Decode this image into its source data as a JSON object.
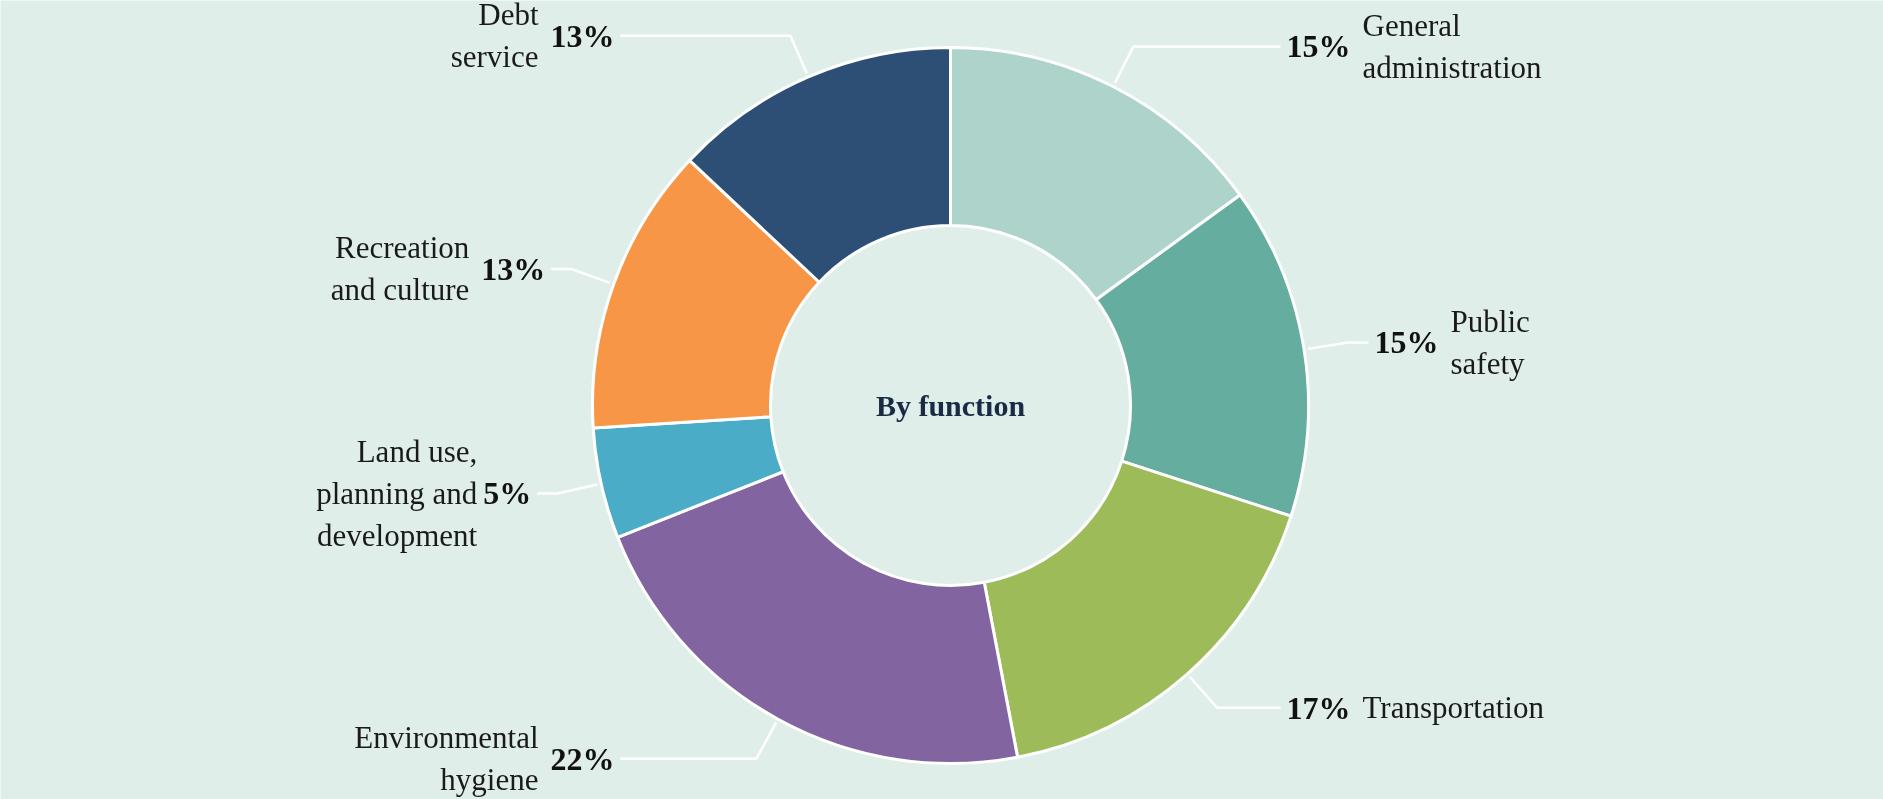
{
  "chart_data": {
    "type": "donut",
    "title": "By function",
    "categories": [
      "General\nadministration",
      "Public\nsafety",
      "Transportation",
      "Environmental\nhygiene",
      "Land use,\nplanning and\ndevelopment",
      "Recreation\nand culture",
      "Debt\nservice"
    ],
    "values": [
      15,
      15,
      17,
      22,
      5,
      13,
      13
    ],
    "colors": [
      "#aed3cb",
      "#65ad9f",
      "#9dbb58",
      "#8265a0",
      "#4aacc6",
      "#f79646",
      "#2e4f75"
    ],
    "value_labels": [
      "15%",
      "15%",
      "17%",
      "22%",
      "5%",
      "13%",
      "13%"
    ]
  }
}
